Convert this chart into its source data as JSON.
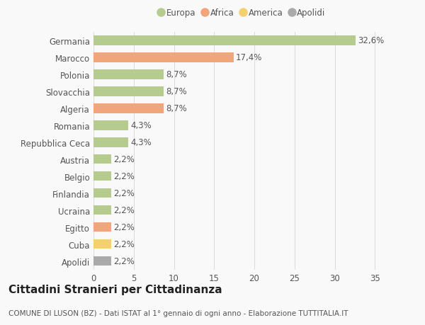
{
  "categories": [
    "Germania",
    "Marocco",
    "Polonia",
    "Slovacchia",
    "Algeria",
    "Romania",
    "Repubblica Ceca",
    "Austria",
    "Belgio",
    "Finlandia",
    "Ucraina",
    "Egitto",
    "Cuba",
    "Apolidi"
  ],
  "values": [
    32.6,
    17.4,
    8.7,
    8.7,
    8.7,
    4.3,
    4.3,
    2.2,
    2.2,
    2.2,
    2.2,
    2.2,
    2.2,
    2.2
  ],
  "labels": [
    "32,6%",
    "17,4%",
    "8,7%",
    "8,7%",
    "8,7%",
    "4,3%",
    "4,3%",
    "2,2%",
    "2,2%",
    "2,2%",
    "2,2%",
    "2,2%",
    "2,2%",
    "2,2%"
  ],
  "colors": [
    "#b5cc8e",
    "#f0a57a",
    "#b5cc8e",
    "#b5cc8e",
    "#f0a57a",
    "#b5cc8e",
    "#b5cc8e",
    "#b5cc8e",
    "#b5cc8e",
    "#b5cc8e",
    "#b5cc8e",
    "#f0a57a",
    "#f5d06e",
    "#aaaaaa"
  ],
  "legend_labels": [
    "Europa",
    "Africa",
    "America",
    "Apolidi"
  ],
  "legend_colors": [
    "#b5cc8e",
    "#f0a57a",
    "#f5d06e",
    "#aaaaaa"
  ],
  "title": "Cittadini Stranieri per Cittadinanza",
  "subtitle": "COMUNE DI LUSON (BZ) - Dati ISTAT al 1° gennaio di ogni anno - Elaborazione TUTTITALIA.IT",
  "xlim": [
    0,
    37
  ],
  "xticks": [
    0,
    5,
    10,
    15,
    20,
    25,
    30,
    35
  ],
  "background_color": "#f9f9f9",
  "grid_color": "#dddddd",
  "bar_height": 0.55,
  "label_fontsize": 8.5,
  "tick_fontsize": 8.5,
  "title_fontsize": 11,
  "subtitle_fontsize": 7.5
}
